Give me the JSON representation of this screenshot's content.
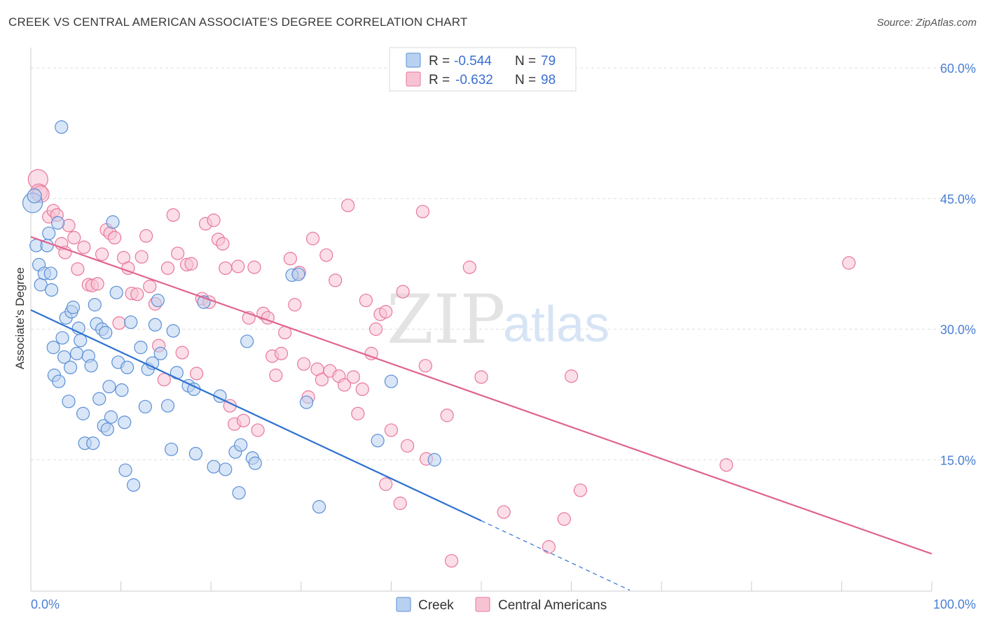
{
  "title": "CREEK VS CENTRAL AMERICAN ASSOCIATE'S DEGREE CORRELATION CHART",
  "source": "Source: ZipAtlas.com",
  "watermark": {
    "zip": "ZIP",
    "atlas": "atlas"
  },
  "colors": {
    "creek": "#5b8fd6",
    "creek_fill": "#b9d1f1",
    "central": "#e8789c",
    "central_fill": "#f7c3d3",
    "tick": "#4a7fd4"
  },
  "chart_data": {
    "type": "scatter",
    "xlabel": "",
    "ylabel": "Associate's Degree",
    "xlim": [
      0,
      100
    ],
    "ylim": [
      0,
      60
    ],
    "x_tick_labels": [
      {
        "v": 0,
        "label": "0.0%"
      },
      {
        "v": 100,
        "label": "100.0%"
      }
    ],
    "y_tick_labels": [
      {
        "v": 15,
        "label": "15.0%"
      },
      {
        "v": 30,
        "label": "30.0%"
      },
      {
        "v": 45,
        "label": "45.0%"
      },
      {
        "v": 60,
        "label": "60.0%"
      }
    ],
    "grid": true,
    "legend": {
      "position": "top-center",
      "entries": [
        {
          "r_label": "R =",
          "r": "-0.544",
          "n_label": "N =",
          "n": "79"
        },
        {
          "r_label": "R =",
          "r": "-0.632",
          "n_label": "N =",
          "n": "98"
        }
      ]
    },
    "series": [
      {
        "name": "Creek",
        "trend": {
          "x0": 0,
          "y0": 32.2,
          "x1": 50,
          "y1": 8.0,
          "dash_to_x": 66.5
        },
        "points": [
          [
            0.2,
            44.5
          ],
          [
            0.4,
            45.3
          ],
          [
            3.4,
            53.2
          ],
          [
            0.6,
            39.6
          ],
          [
            0.9,
            37.4
          ],
          [
            1.1,
            35.1
          ],
          [
            1.5,
            36.4
          ],
          [
            2.0,
            41.0
          ],
          [
            1.8,
            39.6
          ],
          [
            2.2,
            36.4
          ],
          [
            2.3,
            34.5
          ],
          [
            2.5,
            27.9
          ],
          [
            2.6,
            24.7
          ],
          [
            3.1,
            24.0
          ],
          [
            3.5,
            29.0
          ],
          [
            3.7,
            26.8
          ],
          [
            3.9,
            31.3
          ],
          [
            4.2,
            21.7
          ],
          [
            4.4,
            25.6
          ],
          [
            4.5,
            32.0
          ],
          [
            4.7,
            32.5
          ],
          [
            5.1,
            27.2
          ],
          [
            5.3,
            30.1
          ],
          [
            5.5,
            28.7
          ],
          [
            5.8,
            20.3
          ],
          [
            6.0,
            16.9
          ],
          [
            6.4,
            26.9
          ],
          [
            6.7,
            25.8
          ],
          [
            6.9,
            16.9
          ],
          [
            7.1,
            32.8
          ],
          [
            7.3,
            30.6
          ],
          [
            7.6,
            22.0
          ],
          [
            7.9,
            30.0
          ],
          [
            8.1,
            18.9
          ],
          [
            8.3,
            29.6
          ],
          [
            8.5,
            18.5
          ],
          [
            8.7,
            23.4
          ],
          [
            8.9,
            19.9
          ],
          [
            9.1,
            42.3
          ],
          [
            9.5,
            34.2
          ],
          [
            9.7,
            26.2
          ],
          [
            10.1,
            23.0
          ],
          [
            10.4,
            19.3
          ],
          [
            10.5,
            13.8
          ],
          [
            10.7,
            25.6
          ],
          [
            11.1,
            30.8
          ],
          [
            11.4,
            12.1
          ],
          [
            12.2,
            27.9
          ],
          [
            12.7,
            21.1
          ],
          [
            13.0,
            25.4
          ],
          [
            13.5,
            26.1
          ],
          [
            13.8,
            30.5
          ],
          [
            14.1,
            33.3
          ],
          [
            14.4,
            27.2
          ],
          [
            15.2,
            21.2
          ],
          [
            15.6,
            16.2
          ],
          [
            15.8,
            29.8
          ],
          [
            16.2,
            25.0
          ],
          [
            17.5,
            23.5
          ],
          [
            18.1,
            23.1
          ],
          [
            18.3,
            15.7
          ],
          [
            19.2,
            33.1
          ],
          [
            20.3,
            14.2
          ],
          [
            21.0,
            22.3
          ],
          [
            21.6,
            13.9
          ],
          [
            22.7,
            15.9
          ],
          [
            23.1,
            11.2
          ],
          [
            23.3,
            16.7
          ],
          [
            24.0,
            28.6
          ],
          [
            24.6,
            15.2
          ],
          [
            24.9,
            14.6
          ],
          [
            29.0,
            36.2
          ],
          [
            29.7,
            36.3
          ],
          [
            30.6,
            21.6
          ],
          [
            32.0,
            9.6
          ],
          [
            38.5,
            17.2
          ],
          [
            40.0,
            24.0
          ],
          [
            44.8,
            15.0
          ],
          [
            3.0,
            42.2
          ]
        ]
      },
      {
        "name": "Central Americans",
        "trend": {
          "x0": 0,
          "y0": 40.6,
          "x1": 100,
          "y1": 4.2
        },
        "points": [
          [
            0.8,
            47.2
          ],
          [
            0.9,
            45.7
          ],
          [
            1.1,
            45.5
          ],
          [
            2.0,
            42.9
          ],
          [
            2.5,
            43.6
          ],
          [
            2.9,
            43.1
          ],
          [
            3.4,
            39.8
          ],
          [
            3.8,
            38.8
          ],
          [
            4.2,
            41.9
          ],
          [
            4.8,
            40.5
          ],
          [
            5.2,
            36.9
          ],
          [
            5.9,
            39.4
          ],
          [
            6.4,
            35.1
          ],
          [
            6.8,
            35.0
          ],
          [
            7.4,
            35.2
          ],
          [
            7.9,
            38.6
          ],
          [
            8.4,
            41.4
          ],
          [
            8.8,
            41.0
          ],
          [
            9.3,
            40.5
          ],
          [
            9.8,
            30.7
          ],
          [
            10.3,
            38.2
          ],
          [
            10.8,
            37.0
          ],
          [
            11.2,
            34.1
          ],
          [
            11.8,
            34.0
          ],
          [
            12.3,
            38.3
          ],
          [
            12.8,
            40.7
          ],
          [
            13.2,
            34.9
          ],
          [
            13.8,
            32.9
          ],
          [
            14.2,
            28.1
          ],
          [
            14.8,
            24.2
          ],
          [
            15.2,
            37.0
          ],
          [
            15.8,
            43.1
          ],
          [
            16.3,
            38.7
          ],
          [
            16.8,
            27.3
          ],
          [
            17.3,
            37.4
          ],
          [
            17.8,
            37.5
          ],
          [
            18.4,
            24.9
          ],
          [
            19.0,
            33.5
          ],
          [
            19.4,
            42.1
          ],
          [
            19.8,
            33.1
          ],
          [
            20.3,
            42.5
          ],
          [
            20.8,
            40.3
          ],
          [
            21.3,
            39.8
          ],
          [
            21.6,
            37.0
          ],
          [
            22.1,
            21.2
          ],
          [
            22.6,
            19.1
          ],
          [
            23.0,
            37.2
          ],
          [
            23.6,
            19.5
          ],
          [
            24.2,
            31.3
          ],
          [
            24.8,
            37.1
          ],
          [
            25.2,
            18.4
          ],
          [
            25.8,
            31.8
          ],
          [
            26.3,
            31.3
          ],
          [
            26.8,
            26.9
          ],
          [
            27.2,
            24.7
          ],
          [
            27.8,
            27.2
          ],
          [
            28.2,
            29.6
          ],
          [
            28.8,
            38.1
          ],
          [
            29.3,
            32.8
          ],
          [
            29.8,
            36.5
          ],
          [
            30.3,
            26.0
          ],
          [
            30.8,
            22.2
          ],
          [
            31.3,
            40.4
          ],
          [
            31.8,
            25.4
          ],
          [
            32.3,
            24.2
          ],
          [
            32.8,
            38.5
          ],
          [
            33.2,
            25.2
          ],
          [
            33.8,
            35.6
          ],
          [
            34.2,
            24.6
          ],
          [
            34.8,
            23.6
          ],
          [
            35.2,
            44.2
          ],
          [
            35.8,
            24.5
          ],
          [
            36.3,
            20.3
          ],
          [
            36.8,
            23.1
          ],
          [
            37.2,
            33.3
          ],
          [
            37.8,
            27.2
          ],
          [
            38.3,
            30.0
          ],
          [
            38.8,
            31.7
          ],
          [
            39.4,
            32.0
          ],
          [
            40.0,
            18.4
          ],
          [
            39.4,
            12.2
          ],
          [
            41.0,
            10.0
          ],
          [
            41.3,
            34.3
          ],
          [
            41.8,
            16.6
          ],
          [
            43.5,
            43.5
          ],
          [
            43.8,
            25.8
          ],
          [
            43.9,
            15.1
          ],
          [
            46.2,
            20.1
          ],
          [
            46.7,
            3.4
          ],
          [
            48.7,
            37.1
          ],
          [
            50.0,
            24.5
          ],
          [
            52.5,
            9.0
          ],
          [
            57.5,
            5.0
          ],
          [
            59.2,
            8.2
          ],
          [
            60.0,
            24.6
          ],
          [
            61.0,
            11.5
          ],
          [
            77.2,
            14.4
          ],
          [
            90.8,
            37.6
          ]
        ]
      }
    ]
  },
  "bottom_legend": [
    {
      "label": "Creek"
    },
    {
      "label": "Central Americans"
    }
  ]
}
